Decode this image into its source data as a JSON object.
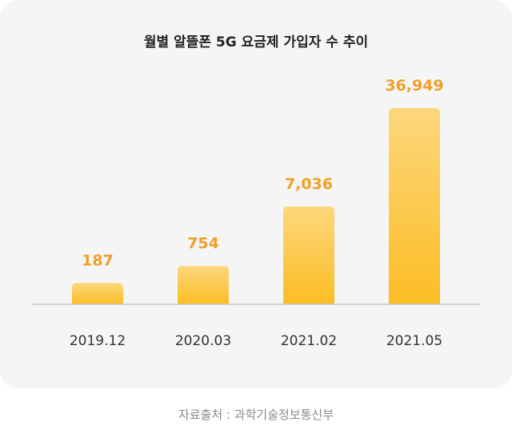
{
  "chart_data": {
    "type": "bar",
    "title": "월별 알뜰폰 5G 요금제 가입자 수 추이",
    "categories": [
      "2019.12",
      "2020.03",
      "2021.02",
      "2021.05"
    ],
    "values": [
      187,
      754,
      7036,
      36949
    ],
    "value_labels": [
      "187",
      "754",
      "7,036",
      "36,949"
    ],
    "xlabel": "",
    "ylabel": "",
    "grid": false,
    "legend": "none"
  },
  "source": "자료출처 : 과학기술정보통신부",
  "colors": {
    "bar_top": "#fcd77c",
    "bar_bottom": "#fcbd24",
    "value_label": "#f0a028",
    "axis": "#c8c8c8",
    "card_background": "#f5f5f5"
  }
}
